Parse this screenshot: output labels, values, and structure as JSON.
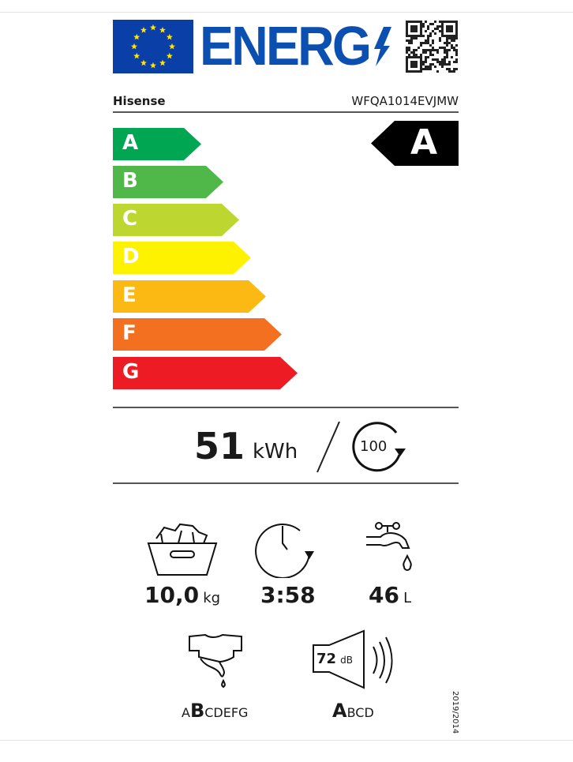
{
  "header": {
    "energy_logo_text": "ENERG",
    "brand": "Hisense",
    "model": "WFQA1014EVJMW"
  },
  "scale": {
    "classes": [
      {
        "letter": "A",
        "color": "#00a651"
      },
      {
        "letter": "B",
        "color": "#50b848"
      },
      {
        "letter": "C",
        "color": "#bed630"
      },
      {
        "letter": "D",
        "color": "#fff200"
      },
      {
        "letter": "E",
        "color": "#fdb913"
      },
      {
        "letter": "F",
        "color": "#f37021"
      },
      {
        "letter": "G",
        "color": "#ed1c24"
      }
    ],
    "rating": "A"
  },
  "energy": {
    "value": "51",
    "unit": "kWh",
    "cycles": "100"
  },
  "specs": {
    "capacity": {
      "value": "10,0",
      "unit": "kg"
    },
    "duration": {
      "value": "3:58"
    },
    "water": {
      "value": "46",
      "unit": "L"
    },
    "spin_class": {
      "pre": "A",
      "selected": "B",
      "post": "CDEFG"
    },
    "noise": {
      "value": "72",
      "unit": "dB",
      "selected": "A",
      "post": "BCD"
    }
  },
  "regulation": "2019/2014"
}
